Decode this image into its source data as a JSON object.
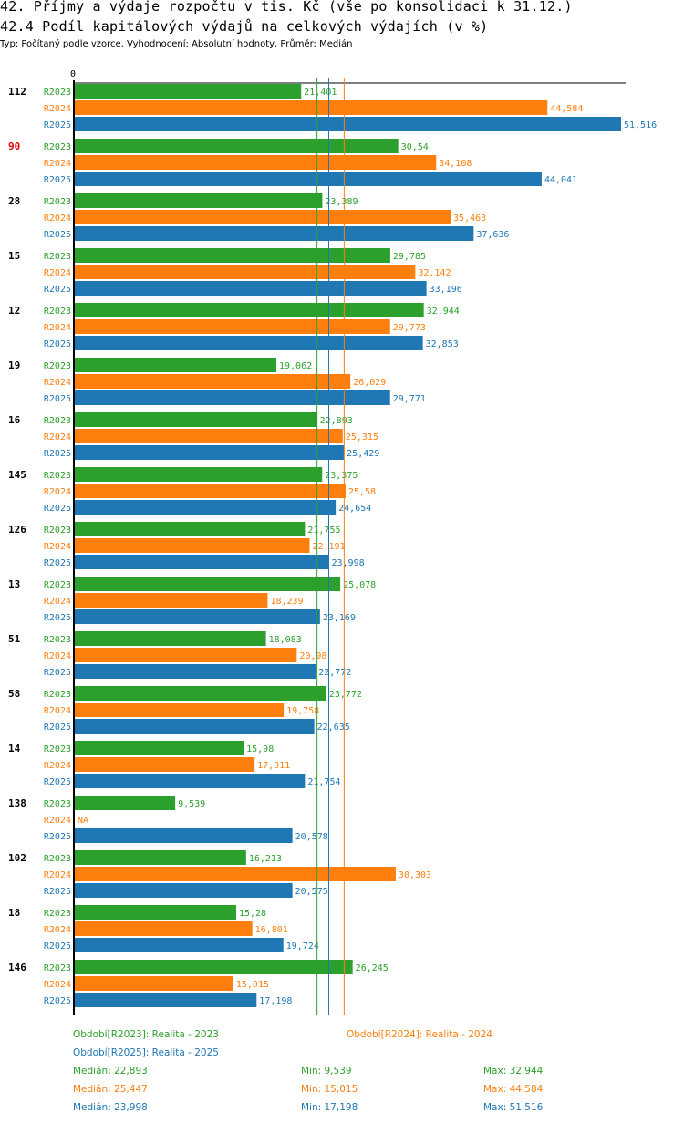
{
  "header": {
    "title": "42. Příjmy a výdaje rozpočtu v tis. Kč (vše po konsolidaci k 31.12.)",
    "subtitle": "42.4 Podíl kapitálových výdajů na celkových výdajích (v %)",
    "meta": "Typ: Počítaný podle vzorce, Vyhodnocení: Absolutní hodnoty, Průměr: Medián"
  },
  "colors": {
    "R2023": "#2ca02c",
    "R2024": "#ff7f0e",
    "R2025": "#1f77b4",
    "highlight_label": "#e00000",
    "axis": "#000000"
  },
  "chart_data": {
    "type": "bar",
    "orientation": "horizontal",
    "title": "42.4 Podíl kapitálových výdajů na celkových výdajích (v %)",
    "xlabel": "",
    "ylabel": "",
    "x_tick_labels": [
      "0"
    ],
    "xlim": [
      0,
      51.516
    ],
    "grid": false,
    "legend_position": "bottom",
    "categories": [
      "112",
      "90",
      "28",
      "15",
      "12",
      "19",
      "16",
      "145",
      "126",
      "13",
      "51",
      "58",
      "14",
      "138",
      "102",
      "18",
      "146"
    ],
    "highlighted_category": "90",
    "series": [
      {
        "name": "R2023",
        "legend": "Období[R2023]: Realita - 2023",
        "values": [
          21.401,
          30.54,
          23.389,
          29.785,
          32.944,
          19.062,
          22.893,
          23.375,
          21.755,
          25.078,
          18.083,
          23.772,
          15.98,
          9.539,
          16.213,
          15.28,
          26.245
        ],
        "labels": [
          "21,401",
          "30,54",
          "23,389",
          "29,785",
          "32,944",
          "19,062",
          "22,893",
          "23,375",
          "21,755",
          "25,078",
          "18,083",
          "23,772",
          "15,98",
          "9,539",
          "16,213",
          "15,28",
          "26,245"
        ],
        "median": 22.893
      },
      {
        "name": "R2024",
        "legend": "Období[R2024]: Realita - 2024",
        "values": [
          44.584,
          34.108,
          35.463,
          32.142,
          29.773,
          26.029,
          25.315,
          25.58,
          22.191,
          18.239,
          20.98,
          19.758,
          17.011,
          null,
          30.303,
          16.801,
          15.015
        ],
        "labels": [
          "44,584",
          "34,108",
          "35,463",
          "32,142",
          "29,773",
          "26,029",
          "25,315",
          "25,58",
          "22,191",
          "18,239",
          "20,98",
          "19,758",
          "17,011",
          "NA",
          "30,303",
          "16,801",
          "15,015"
        ],
        "median": 25.447
      },
      {
        "name": "R2025",
        "legend": "Období[R2025]: Realita - 2025",
        "values": [
          51.516,
          44.041,
          37.636,
          33.196,
          32.853,
          29.771,
          25.429,
          24.654,
          23.998,
          23.169,
          22.772,
          22.635,
          21.754,
          20.578,
          20.575,
          19.724,
          17.198
        ],
        "labels": [
          "51,516",
          "44,041",
          "37,636",
          "33,196",
          "32,853",
          "29,771",
          "25,429",
          "24,654",
          "23,998",
          "23,169",
          "22,772",
          "22,635",
          "21,754",
          "20,578",
          "20,575",
          "19,724",
          "17,198"
        ],
        "median": 23.998
      }
    ],
    "stats": [
      {
        "series": "R2023",
        "median": "Medián: 22,893",
        "min": "Min: 9,539",
        "max": "Max: 32,944"
      },
      {
        "series": "R2024",
        "median": "Medián: 25,447",
        "min": "Min: 15,015",
        "max": "Max: 44,584"
      },
      {
        "series": "R2025",
        "median": "Medián: 23,998",
        "min": "Min: 17,198",
        "max": "Max: 51,516"
      }
    ]
  }
}
